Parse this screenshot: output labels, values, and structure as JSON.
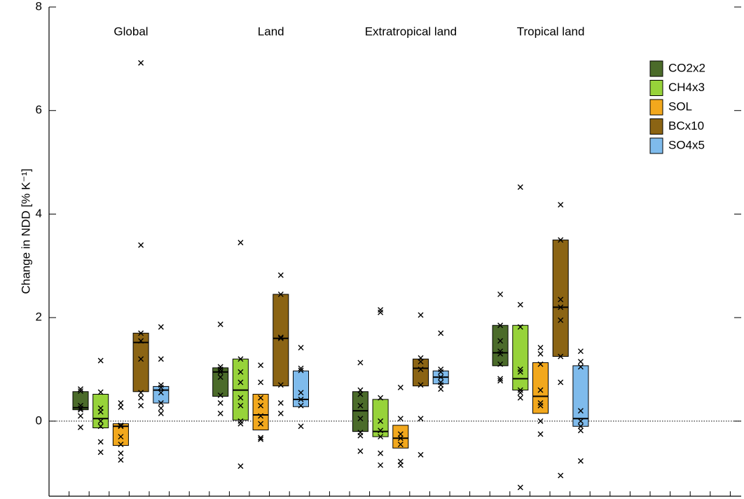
{
  "chart_data": {
    "type": "box",
    "ylabel": "Change in NDD [% K⁻¹]",
    "ylim": [
      -1.45,
      8
    ],
    "yticks": [
      0,
      2,
      4,
      6,
      8
    ],
    "categories": [
      "Global",
      "Land",
      "Extratropical land",
      "Tropical land"
    ],
    "series": [
      {
        "name": "CO2x2",
        "color": "#4b6b2a",
        "q3": [
          0.57,
          1.03,
          0.57,
          1.85
        ],
        "median": [
          0.26,
          0.95,
          0.2,
          1.32
        ],
        "q1": [
          0.22,
          0.48,
          -0.2,
          1.07
        ],
        "points": [
          [
            0.62,
            0.58,
            0.3,
            0.25,
            0.22,
            0.1,
            -0.12
          ],
          [
            1.87,
            1.05,
            1.0,
            0.95,
            0.85,
            0.5,
            0.35,
            0.15
          ],
          [
            1.13,
            0.6,
            0.52,
            0.3,
            0.05,
            -0.22,
            -0.28,
            -0.58
          ],
          [
            2.45,
            1.85,
            1.55,
            1.35,
            1.3,
            1.1,
            0.82,
            0.78
          ]
        ]
      },
      {
        "name": "CH4x3",
        "color": "#97d33a",
        "q3": [
          0.52,
          1.2,
          0.42,
          1.85
        ],
        "median": [
          0.05,
          0.6,
          -0.2,
          0.82
        ],
        "q1": [
          -0.13,
          0.02,
          -0.3,
          0.6
        ],
        "points": [
          [
            1.17,
            0.56,
            0.25,
            0.18,
            0.0,
            -0.1,
            -0.4,
            -0.6
          ],
          [
            3.45,
            1.2,
            0.95,
            0.75,
            0.45,
            0.3,
            0.0,
            -0.05,
            -0.87
          ],
          [
            2.15,
            2.1,
            0.45,
            0.0,
            -0.18,
            -0.3,
            -0.62,
            -0.85
          ],
          [
            4.52,
            2.25,
            1.82,
            1.0,
            0.95,
            0.6,
            0.55,
            0.45,
            -1.28
          ]
        ]
      },
      {
        "name": "SOL",
        "color": "#f2a81d",
        "q3": [
          -0.05,
          0.52,
          -0.08,
          1.13
        ],
        "median": [
          -0.1,
          0.12,
          -0.33,
          0.48
        ],
        "q1": [
          -0.47,
          -0.17,
          -0.52,
          0.15
        ],
        "points": [
          [
            0.35,
            0.27,
            -0.08,
            -0.1,
            -0.3,
            -0.45,
            -0.62,
            -0.75
          ],
          [
            1.08,
            0.75,
            0.45,
            0.3,
            0.1,
            -0.05,
            -0.32,
            -0.35
          ],
          [
            0.65,
            0.05,
            -0.25,
            -0.33,
            -0.45,
            -0.78,
            -0.85
          ],
          [
            1.42,
            1.3,
            1.1,
            0.6,
            0.35,
            0.3,
            0.0,
            -0.25
          ]
        ]
      },
      {
        "name": "BCx10",
        "color": "#8b6414",
        "q3": [
          1.7,
          2.45,
          1.2,
          3.5
        ],
        "median": [
          1.52,
          1.6,
          1.02,
          2.2
        ],
        "q1": [
          0.57,
          0.68,
          0.68,
          1.25
        ],
        "points": [
          [
            6.92,
            3.4,
            1.7,
            1.55,
            1.2,
            0.55,
            0.45,
            0.3
          ],
          [
            2.82,
            2.45,
            1.62,
            1.6,
            0.7,
            0.35,
            0.15
          ],
          [
            2.05,
            1.22,
            1.15,
            1.0,
            0.7,
            0.05,
            -0.65
          ],
          [
            4.18,
            3.5,
            2.35,
            2.2,
            1.95,
            1.25,
            0.75,
            -1.05
          ]
        ]
      },
      {
        "name": "SO4x5",
        "color": "#7fbbec",
        "q3": [
          0.67,
          0.97,
          0.97,
          1.07
        ],
        "median": [
          0.6,
          0.42,
          0.85,
          0.05
        ],
        "q1": [
          0.35,
          0.28,
          0.72,
          -0.1
        ],
        "points": [
          [
            1.82,
            1.2,
            0.7,
            0.65,
            0.55,
            0.35,
            0.25,
            0.15
          ],
          [
            1.42,
            1.02,
            0.98,
            0.55,
            0.42,
            0.3,
            -0.1
          ],
          [
            1.7,
            1.0,
            0.95,
            0.85,
            0.75,
            0.7,
            0.62
          ],
          [
            1.35,
            1.15,
            1.05,
            0.2,
            0.0,
            -0.1,
            -0.18,
            -0.77
          ]
        ]
      }
    ]
  }
}
